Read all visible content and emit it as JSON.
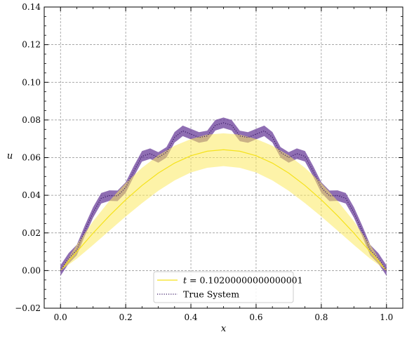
{
  "chart_data": {
    "type": "line",
    "xlabel": "x",
    "ylabel": "u",
    "xlim": [
      -0.05,
      1.05
    ],
    "ylim": [
      -0.02,
      0.14
    ],
    "x_ticks": [
      0.0,
      0.2,
      0.4,
      0.6,
      0.8,
      1.0
    ],
    "x_tick_labels": [
      "0.0",
      "0.2",
      "0.4",
      "0.6",
      "0.8",
      "1.0"
    ],
    "y_ticks": [
      -0.02,
      0.0,
      0.02,
      0.04,
      0.06,
      0.08,
      0.1,
      0.12,
      0.14
    ],
    "y_tick_labels": [
      "−0.02",
      "0.00",
      "0.02",
      "0.04",
      "0.06",
      "0.08",
      "0.10",
      "0.12",
      "0.14"
    ],
    "grid": true,
    "legend_position": "bottom-center",
    "series": [
      {
        "name": "t = 0.10200000000000001",
        "legend_prefix": "t",
        "legend_suffix": " = 0.10200000000000001",
        "style": "solid",
        "color": "#f5e21b",
        "band_color": "#fbe961",
        "x": [
          0.0,
          0.05,
          0.1,
          0.15,
          0.2,
          0.25,
          0.3,
          0.35,
          0.4,
          0.45,
          0.5,
          0.55,
          0.6,
          0.65,
          0.7,
          0.75,
          0.8,
          0.85,
          0.9,
          0.95,
          1.0
        ],
        "values": [
          0.0,
          0.01,
          0.0199,
          0.0291,
          0.0376,
          0.0452,
          0.0518,
          0.0571,
          0.061,
          0.0634,
          0.0642,
          0.0634,
          0.061,
          0.0571,
          0.0518,
          0.0452,
          0.0376,
          0.0291,
          0.0199,
          0.01,
          0.0
        ],
        "band_lower": [
          0.0,
          0.0063,
          0.0136,
          0.0212,
          0.0287,
          0.0358,
          0.0424,
          0.0479,
          0.0521,
          0.0546,
          0.0555,
          0.0546,
          0.0521,
          0.0479,
          0.0424,
          0.0358,
          0.0287,
          0.0212,
          0.0136,
          0.0063,
          0.0
        ],
        "band_upper": [
          0.0,
          0.0137,
          0.0262,
          0.037,
          0.0465,
          0.0546,
          0.0612,
          0.0663,
          0.0699,
          0.0722,
          0.0729,
          0.0722,
          0.0699,
          0.0663,
          0.0612,
          0.0546,
          0.0465,
          0.037,
          0.0262,
          0.0137,
          0.0
        ]
      },
      {
        "name": "True System",
        "style": "dotted",
        "color": "#3a1a66",
        "band_color": "#6a3d9a",
        "x": [
          0.0,
          0.025,
          0.05,
          0.075,
          0.1,
          0.125,
          0.15,
          0.175,
          0.2,
          0.225,
          0.25,
          0.275,
          0.3,
          0.325,
          0.35,
          0.375,
          0.4,
          0.425,
          0.45,
          0.475,
          0.5,
          0.525,
          0.55,
          0.575,
          0.6,
          0.625,
          0.65,
          0.675,
          0.7,
          0.725,
          0.75,
          0.775,
          0.8,
          0.825,
          0.85,
          0.875,
          0.9,
          0.925,
          0.95,
          0.975,
          1.0
        ],
        "values": [
          0.0,
          0.0065,
          0.0109,
          0.0213,
          0.0309,
          0.0384,
          0.0398,
          0.0397,
          0.0441,
          0.0528,
          0.0607,
          0.0621,
          0.0601,
          0.0628,
          0.0708,
          0.0742,
          0.0725,
          0.0707,
          0.0715,
          0.0772,
          0.0785,
          0.0772,
          0.0715,
          0.0707,
          0.0725,
          0.0742,
          0.0708,
          0.0628,
          0.0601,
          0.0621,
          0.0607,
          0.0528,
          0.0441,
          0.0397,
          0.0398,
          0.0384,
          0.0309,
          0.0213,
          0.0109,
          0.0065,
          0.0
        ],
        "band_halfwidth": 0.0028
      }
    ]
  }
}
